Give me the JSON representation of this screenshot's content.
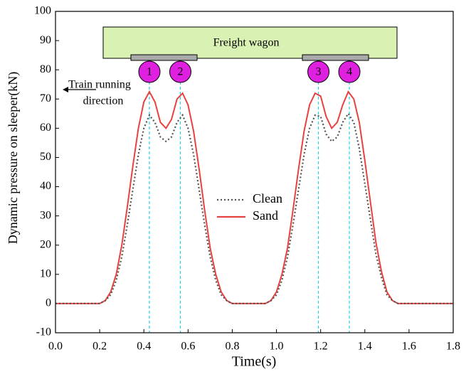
{
  "chart_data": {
    "type": "line",
    "xlabel": "Time(s)",
    "ylabel": "Dynamic pressure on sleeper(kN)",
    "x": [
      0,
      0.025,
      0.05,
      0.075,
      0.1,
      0.125,
      0.15,
      0.175,
      0.2,
      0.225,
      0.25,
      0.275,
      0.3,
      0.325,
      0.35,
      0.375,
      0.4,
      0.425,
      0.45,
      0.475,
      0.5,
      0.525,
      0.55,
      0.575,
      0.6,
      0.625,
      0.65,
      0.675,
      0.7,
      0.725,
      0.75,
      0.775,
      0.8,
      0.825,
      0.85,
      0.875,
      0.9,
      0.925,
      0.95,
      0.975,
      1,
      1.025,
      1.05,
      1.075,
      1.1,
      1.125,
      1.15,
      1.175,
      1.2,
      1.225,
      1.25,
      1.275,
      1.3,
      1.325,
      1.35,
      1.375,
      1.4,
      1.425,
      1.45,
      1.475,
      1.5,
      1.525,
      1.55,
      1.575,
      1.6,
      1.625,
      1.65,
      1.675,
      1.7,
      1.725,
      1.75,
      1.775,
      1.8
    ],
    "series": [
      {
        "name": "Clean",
        "color": "#555555",
        "dash": true,
        "values": [
          0,
          0,
          0,
          0,
          0,
          0,
          0,
          0,
          0,
          1,
          3,
          8,
          16,
          27,
          39,
          51,
          60,
          64.5,
          62,
          57,
          55.5,
          57,
          62,
          64.5,
          60,
          51,
          39,
          27,
          16,
          8,
          3,
          1,
          0,
          0,
          0,
          0,
          0,
          0,
          0,
          1,
          3,
          8,
          16,
          27,
          39,
          51,
          60,
          64.5,
          64,
          58,
          55.5,
          57,
          62,
          65,
          62,
          53,
          41,
          29,
          17,
          9,
          3,
          1,
          0,
          0,
          0,
          0,
          0,
          0,
          0,
          0,
          0,
          0,
          0
        ]
      },
      {
        "name": "Sand",
        "color": "#e8423f",
        "dash": false,
        "values": [
          0,
          0,
          0,
          0,
          0,
          0,
          0,
          0,
          0,
          1,
          4,
          10,
          20,
          33,
          47,
          60,
          69,
          72.5,
          69,
          62,
          60,
          63,
          70,
          72,
          68,
          59,
          46,
          32,
          19,
          10,
          4,
          1,
          0,
          0,
          0,
          0,
          0,
          0,
          0,
          1,
          4,
          10,
          19,
          32,
          46,
          59,
          68,
          72,
          71,
          64,
          60,
          62,
          68,
          72.5,
          70,
          62,
          49,
          35,
          21,
          11,
          4,
          1,
          0,
          0,
          0,
          0,
          0,
          0,
          0,
          0,
          0,
          0,
          0
        ]
      }
    ],
    "xlim": [
      0,
      1.8
    ],
    "xticks": [
      {
        "value": 0,
        "label": "0.0"
      },
      0.2,
      0.4,
      0.6,
      0.8,
      {
        "value": 1,
        "label": "1.0"
      },
      1.2,
      1.4,
      1.6,
      1.8
    ],
    "ylim": [
      -10,
      100
    ],
    "yticks": [
      -10,
      0,
      10,
      20,
      30,
      40,
      50,
      60,
      70,
      80,
      90,
      100
    ],
    "wagon_label": "Freight wagon",
    "direction_label": [
      "Train running",
      "direction"
    ],
    "wheels": [
      {
        "label": "1",
        "x": 0.425
      },
      {
        "label": "2",
        "x": 0.565
      },
      {
        "label": "3",
        "x": 1.19
      },
      {
        "label": "4",
        "x": 1.33
      }
    ]
  }
}
